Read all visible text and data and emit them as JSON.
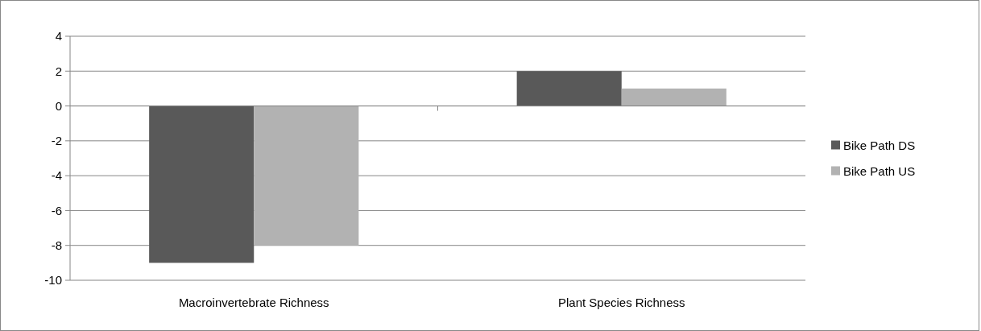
{
  "chart_data": {
    "type": "bar",
    "categories": [
      "Macroinvertebrate Richness",
      "Plant Species Richness"
    ],
    "series": [
      {
        "name": "Bike Path DS",
        "color": "#595959",
        "values": [
          -9,
          2
        ]
      },
      {
        "name": "Bike Path US",
        "color": "#b2b2b2",
        "values": [
          -8,
          1
        ]
      }
    ],
    "ylim": [
      -10,
      4
    ],
    "yticks": [
      -10,
      -8,
      -6,
      -4,
      -2,
      0,
      2,
      4
    ],
    "grid": "y",
    "legend": "right"
  }
}
